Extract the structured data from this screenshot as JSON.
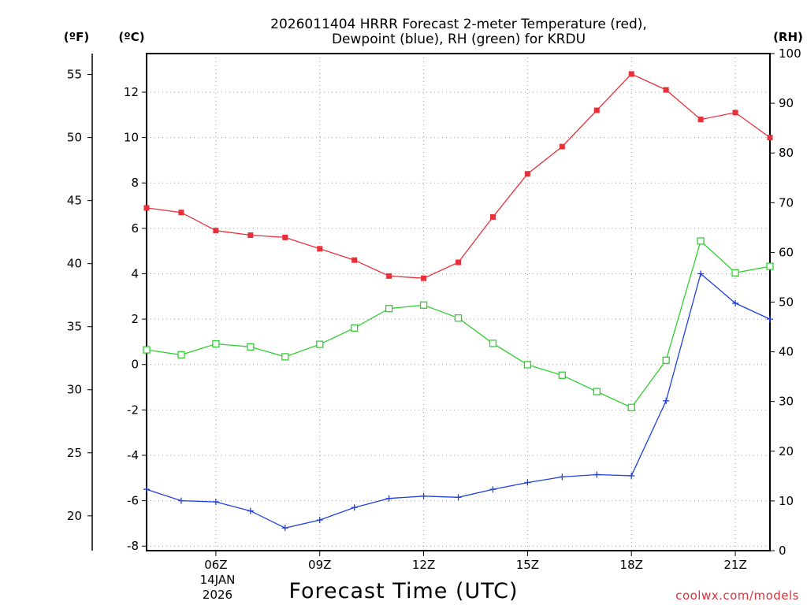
{
  "chart_data": {
    "type": "line",
    "title_line1": "2026011404 HRRR Forecast 2-meter Temperature (red),",
    "title_line2": "Dewpoint (blue), RH (green) for KRDU",
    "xlabel": "Forecast Time (UTC)",
    "date_label_line1": "14JAN",
    "date_label_line2": "2026",
    "credit": "coolwx.com/models",
    "units": {
      "fahrenheit": "(ºF)",
      "celsius": "(ºC)",
      "rh": "(RH)"
    },
    "x_hours": [
      4,
      5,
      6,
      7,
      8,
      9,
      10,
      11,
      12,
      13,
      14,
      15,
      16,
      17,
      18,
      19,
      20,
      21,
      22
    ],
    "x_range": [
      4,
      22
    ],
    "x_ticks": [
      {
        "hour": 6,
        "label": "06Z"
      },
      {
        "hour": 9,
        "label": "09Z"
      },
      {
        "hour": 12,
        "label": "12Z"
      },
      {
        "hour": 15,
        "label": "15Z"
      },
      {
        "hour": 18,
        "label": "18Z"
      },
      {
        "hour": 21,
        "label": "21Z"
      }
    ],
    "y_celsius_range": [
      -8.2,
      13.7
    ],
    "y_celsius_ticks": [
      "-8",
      "-6",
      "-4",
      "-2",
      "0",
      "2",
      "4",
      "6",
      "8",
      "10",
      "12"
    ],
    "y_fahrenheit_ticks": [
      "20",
      "25",
      "30",
      "35",
      "40",
      "45",
      "50",
      "55"
    ],
    "y_rh_range": [
      0,
      100
    ],
    "y_rh_ticks": [
      "0",
      "10",
      "20",
      "30",
      "40",
      "50",
      "60",
      "70",
      "80",
      "90",
      "100"
    ],
    "series": [
      {
        "name": "2-meter Temperature",
        "unit": "C",
        "color": "#e8303a",
        "marker": "filled-square",
        "values": [
          6.9,
          6.7,
          5.9,
          5.7,
          5.6,
          5.1,
          4.6,
          3.9,
          3.8,
          4.5,
          6.5,
          8.4,
          9.6,
          11.2,
          12.8,
          12.1,
          10.8,
          11.1,
          10.0
        ]
      },
      {
        "name": "Dewpoint",
        "unit": "C",
        "color": "#2040e0",
        "marker": "plus",
        "values": [
          -5.5,
          -6.0,
          -6.05,
          -6.45,
          -7.2,
          -6.85,
          -6.3,
          -5.9,
          -5.8,
          -5.85,
          -5.5,
          -5.2,
          -4.95,
          -4.85,
          -4.9,
          -1.6,
          4.0,
          2.7,
          2.0
        ]
      },
      {
        "name": "Relative Humidity",
        "unit": "%",
        "color": "#30d030",
        "marker": "open-square",
        "values": [
          40.4,
          39.4,
          41.6,
          41.0,
          39.0,
          41.5,
          44.8,
          48.7,
          49.4,
          46.8,
          41.7,
          37.4,
          35.3,
          32.0,
          28.8,
          38.3,
          62.3,
          55.9,
          57.2
        ]
      }
    ]
  }
}
